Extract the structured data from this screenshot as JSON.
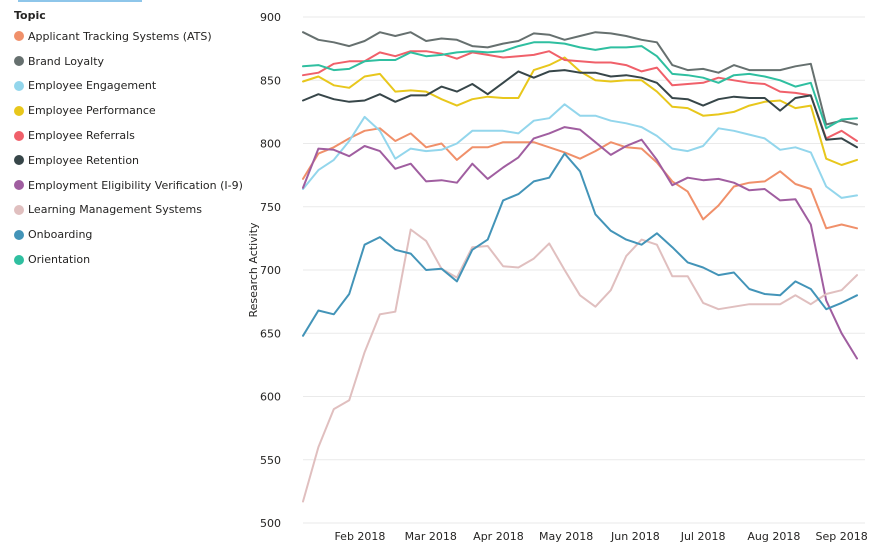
{
  "chart_data": {
    "type": "line",
    "title": "",
    "xlabel": "",
    "ylabel": "Research Activity",
    "ylim": [
      500,
      900
    ],
    "y_ticks": [
      500,
      550,
      600,
      650,
      700,
      750,
      800,
      850,
      900
    ],
    "x_ticks": [
      "Feb 2018",
      "Mar 2018",
      "Apr 2018",
      "May 2018",
      "Jun 2018",
      "Jul 2018",
      "Aug 2018",
      "Sep 2018"
    ],
    "x_tick_positions": [
      3.7,
      8.3,
      12.7,
      17.1,
      21.6,
      26.0,
      30.6,
      35.0
    ],
    "legend_title": "Topic",
    "grid": true,
    "series": [
      {
        "name": "Applicant Tracking Systems (ATS)",
        "color": "#f0906a",
        "values": [
          772,
          792,
          797,
          804,
          810,
          812,
          802,
          808,
          797,
          800,
          787,
          797,
          797,
          801,
          801,
          801,
          797,
          793,
          788,
          794,
          801,
          797,
          796,
          785,
          770,
          762,
          740,
          751,
          766,
          769,
          770,
          778,
          768,
          764,
          733,
          736,
          733
        ]
      },
      {
        "name": "Brand Loyalty",
        "color": "#66706f",
        "values": [
          888,
          882,
          880,
          877,
          881,
          888,
          885,
          888,
          881,
          883,
          882,
          877,
          876,
          879,
          881,
          887,
          886,
          882,
          885,
          888,
          887,
          885,
          882,
          880,
          862,
          858,
          859,
          856,
          862,
          858,
          858,
          858,
          861,
          863,
          815,
          818,
          815
        ]
      },
      {
        "name": "Employee Engagement",
        "color": "#93d6ec",
        "values": [
          764,
          779,
          787,
          802,
          821,
          810,
          788,
          796,
          794,
          795,
          800,
          810,
          810,
          810,
          808,
          818,
          820,
          831,
          822,
          822,
          818,
          816,
          813,
          806,
          796,
          794,
          798,
          812,
          810,
          807,
          804,
          795,
          797,
          793,
          766,
          757,
          759
        ]
      },
      {
        "name": "Employee Performance",
        "color": "#e8c71c",
        "values": [
          849,
          853,
          846,
          844,
          853,
          855,
          841,
          842,
          841,
          835,
          830,
          835,
          837,
          836,
          836,
          858,
          862,
          868,
          857,
          850,
          849,
          850,
          850,
          841,
          829,
          828,
          822,
          823,
          825,
          830,
          833,
          834,
          828,
          830,
          788,
          783,
          787
        ]
      },
      {
        "name": "Employee Referrals",
        "color": "#f0606a",
        "values": [
          854,
          856,
          863,
          865,
          865,
          872,
          869,
          873,
          873,
          871,
          867,
          872,
          870,
          868,
          869,
          870,
          873,
          866,
          865,
          864,
          864,
          862,
          857,
          860,
          846,
          847,
          848,
          852,
          850,
          848,
          847,
          841,
          840,
          838,
          804,
          810,
          802
        ]
      },
      {
        "name": "Employee Retention",
        "color": "#374649",
        "values": [
          834,
          839,
          835,
          833,
          834,
          839,
          833,
          838,
          838,
          845,
          841,
          847,
          839,
          848,
          857,
          852,
          857,
          858,
          856,
          856,
          853,
          854,
          852,
          848,
          836,
          835,
          830,
          835,
          837,
          836,
          836,
          826,
          836,
          838,
          803,
          804,
          797
        ]
      },
      {
        "name": "Employment Eligibility Verification (I-9)",
        "color": "#a05ea0",
        "values": [
          765,
          796,
          795,
          790,
          798,
          794,
          780,
          784,
          770,
          771,
          769,
          784,
          772,
          781,
          789,
          804,
          808,
          813,
          811,
          801,
          791,
          798,
          803,
          787,
          767,
          773,
          771,
          772,
          769,
          763,
          764,
          755,
          756,
          736,
          676,
          650,
          630
        ]
      },
      {
        "name": "Learning Management Systems",
        "color": "#e0bfbf",
        "values": [
          517,
          560,
          590,
          597,
          635,
          665,
          667,
          732,
          723,
          701,
          694,
          718,
          719,
          703,
          702,
          709,
          721,
          700,
          680,
          671,
          684,
          711,
          724,
          720,
          695,
          695,
          674,
          669,
          671,
          673,
          673,
          673,
          680,
          673,
          681,
          684,
          696
        ]
      },
      {
        "name": "Onboarding",
        "color": "#4394b8",
        "values": [
          648,
          668,
          665,
          681,
          720,
          726,
          716,
          713,
          700,
          701,
          691,
          716,
          724,
          755,
          760,
          770,
          773,
          792,
          778,
          744,
          731,
          724,
          720,
          729,
          718,
          706,
          702,
          696,
          698,
          685,
          681,
          680,
          691,
          685,
          669,
          674,
          680
        ]
      },
      {
        "name": "Orientation",
        "color": "#2fbfa0",
        "values": [
          861,
          862,
          858,
          859,
          865,
          866,
          866,
          872,
          869,
          870,
          872,
          873,
          872,
          873,
          877,
          880,
          880,
          879,
          876,
          874,
          876,
          876,
          877,
          869,
          855,
          854,
          852,
          848,
          854,
          855,
          853,
          850,
          845,
          848,
          812,
          819,
          820
        ]
      }
    ]
  }
}
